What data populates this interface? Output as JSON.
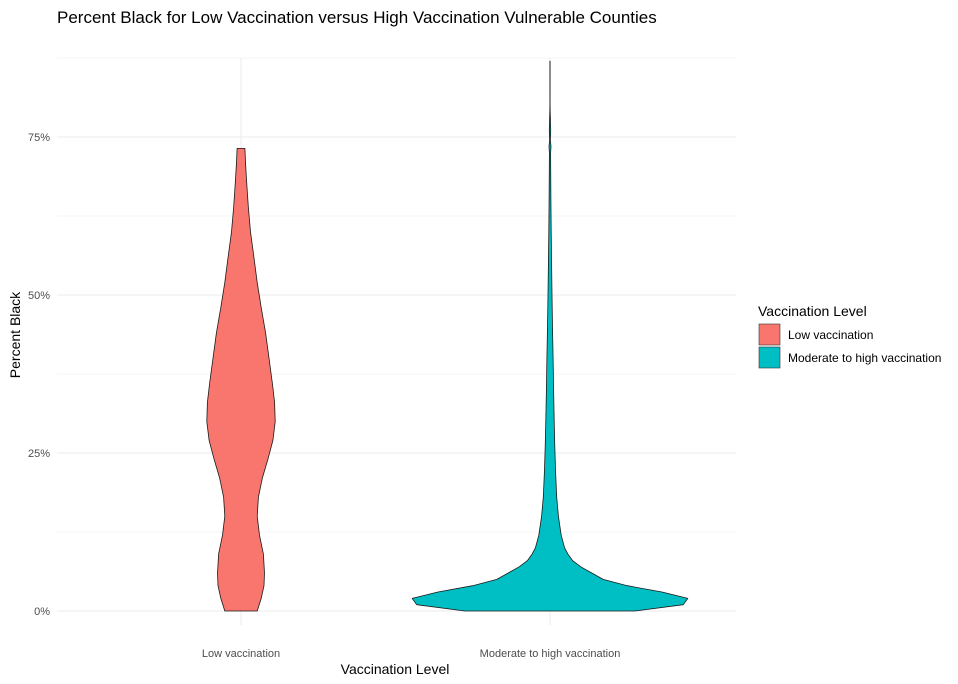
{
  "chart_data": {
    "type": "violin",
    "title": "Percent Black for Low Vaccination versus High Vaccination Vulnerable Counties",
    "xlabel": "Vaccination Level",
    "ylabel": "Percent Black",
    "categories": [
      "Low vaccination",
      "Moderate to high vaccination"
    ],
    "y_ticks": [
      0,
      25,
      50,
      75
    ],
    "y_tick_labels": [
      "0%",
      "25%",
      "50%",
      "75%"
    ],
    "ylim": [
      -2,
      87
    ],
    "grid": true,
    "legend": {
      "title": "Vaccination Level",
      "placement": "right",
      "entries": [
        "Low vaccination",
        "Moderate to high vaccination"
      ]
    },
    "series": [
      {
        "name": "Low vaccination",
        "color": "#F8766D",
        "min": 0,
        "max": 73.2,
        "density_profile": [
          [
            0,
            0.29
          ],
          [
            2,
            0.36
          ],
          [
            4,
            0.41
          ],
          [
            6,
            0.42
          ],
          [
            9,
            0.4
          ],
          [
            12,
            0.33
          ],
          [
            15,
            0.29
          ],
          [
            18,
            0.31
          ],
          [
            21,
            0.38
          ],
          [
            24,
            0.48
          ],
          [
            27,
            0.57
          ],
          [
            30,
            0.61
          ],
          [
            33,
            0.6
          ],
          [
            36,
            0.56
          ],
          [
            40,
            0.5
          ],
          [
            44,
            0.44
          ],
          [
            48,
            0.36
          ],
          [
            52,
            0.29
          ],
          [
            56,
            0.23
          ],
          [
            60,
            0.17
          ],
          [
            64,
            0.13
          ],
          [
            68,
            0.1
          ],
          [
            71,
            0.08
          ],
          [
            73.2,
            0.07
          ]
        ]
      },
      {
        "name": "Moderate to high vaccination",
        "color": "#00BFC4",
        "min": 0,
        "max": 87,
        "density_profile": [
          [
            0,
            1.52
          ],
          [
            1,
            2.38
          ],
          [
            2,
            2.46
          ],
          [
            3,
            2.0
          ],
          [
            4,
            1.38
          ],
          [
            5,
            0.95
          ],
          [
            6,
            0.75
          ],
          [
            7,
            0.55
          ],
          [
            8,
            0.4
          ],
          [
            9,
            0.32
          ],
          [
            10,
            0.26
          ],
          [
            12,
            0.2
          ],
          [
            15,
            0.15
          ],
          [
            18,
            0.12
          ],
          [
            22,
            0.1
          ],
          [
            26,
            0.085
          ],
          [
            30,
            0.075
          ],
          [
            35,
            0.065
          ],
          [
            40,
            0.055
          ],
          [
            45,
            0.045
          ],
          [
            50,
            0.035
          ],
          [
            55,
            0.028
          ],
          [
            60,
            0.022
          ],
          [
            65,
            0.016
          ],
          [
            70,
            0.012
          ],
          [
            72.5,
            0.01
          ],
          [
            73.5,
            0.018
          ],
          [
            74.5,
            0.008
          ],
          [
            76,
            0.012
          ],
          [
            78,
            0.008
          ],
          [
            79,
            0.004
          ],
          [
            80,
            0.002
          ],
          [
            87,
            0.002
          ]
        ]
      }
    ]
  }
}
